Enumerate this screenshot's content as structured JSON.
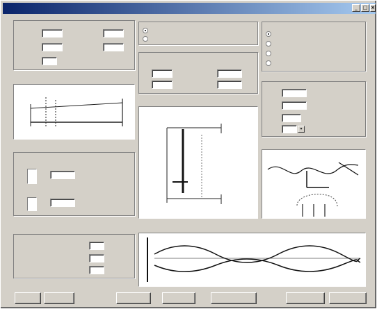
{
  "window": {
    "title": "",
    "min_label": "_",
    "max_label": "□",
    "close_label": "×"
  },
  "icons": {
    "minimize": "minimize-icon",
    "maximize": "maximize-icon",
    "close": "close-icon"
  },
  "panels": {
    "geometry": {
      "title": ""
    },
    "gear_a": {
      "title": ""
    },
    "gear_b": {
      "title": ""
    },
    "data": {
      "title": ""
    },
    "profile": {
      "title": ""
    },
    "mode": {
      "title": ""
    },
    "position": {
      "title": ""
    },
    "shape_small": {
      "title": ""
    },
    "shift": {
      "title": ""
    },
    "plot": {
      "title": ""
    }
  },
  "inputs": {
    "geom_a": "",
    "geom_b": "",
    "geom_c": "",
    "geom_d": "",
    "geom_e": "",
    "mid_1": "",
    "mid_2": "",
    "mid_3": "",
    "mid_4": "",
    "gear_a_1": "",
    "gear_b_1": "",
    "shift_1": "",
    "shift_2": "",
    "shift_3": "",
    "pos_1": "",
    "pos_2": "",
    "pos_3": "",
    "pos_4": ""
  },
  "buttons": {
    "b1": "",
    "b2": "",
    "b3": "",
    "b4": "",
    "b5": "",
    "b6": "",
    "b7": ""
  }
}
